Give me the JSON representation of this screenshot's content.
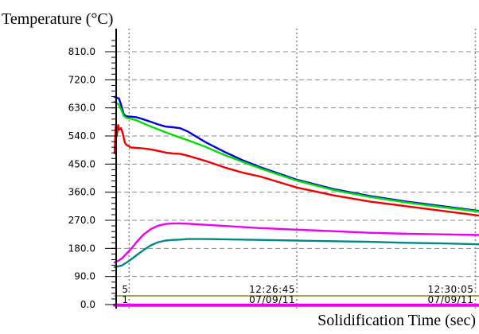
{
  "chart_data": {
    "type": "line",
    "ylabel": "Temperature (°C)",
    "xlabel": "Solidification Time (sec)",
    "ylim": [
      0,
      855
    ],
    "yticks": [
      0,
      90,
      180,
      270,
      360,
      450,
      540,
      630,
      720,
      810
    ],
    "ytick_labels": [
      "0.0",
      "90.0",
      "180.0",
      "270.0",
      "360.0",
      "450.0",
      "540.0",
      "630.0",
      "720.0",
      "810.0"
    ],
    "grid": true,
    "xlim": [
      0,
      100
    ],
    "x_markers": [
      {
        "x": 4,
        "line1": "5",
        "line2": "1"
      },
      {
        "x": 50,
        "line1": "12:26:45",
        "line2": "07/09/11"
      },
      {
        "x": 99,
        "line1": "12:30:05",
        "line2": "07/09/11"
      }
    ],
    "series": [
      {
        "color": "#0000dd",
        "x": [
          0,
          1.2,
          1.8,
          2.5,
          3.2,
          4.5,
          6,
          8,
          10,
          12,
          14,
          16,
          18,
          20,
          25,
          30,
          35,
          40,
          50,
          60,
          70,
          80,
          90,
          100
        ],
        "y": [
          665,
          660,
          640,
          610,
          603,
          602,
          600,
          593,
          585,
          577,
          570,
          568,
          565,
          555,
          520,
          490,
          463,
          440,
          400,
          370,
          348,
          330,
          315,
          300
        ]
      },
      {
        "color": "#00dd00",
        "x": [
          0,
          1.2,
          1.8,
          2.5,
          3.2,
          4.5,
          6,
          8,
          10,
          12,
          14,
          16,
          18,
          20,
          25,
          30,
          35,
          40,
          50,
          60,
          70,
          80,
          90,
          100
        ],
        "y": [
          650,
          640,
          625,
          605,
          598,
          595,
          590,
          580,
          570,
          561,
          552,
          543,
          535,
          527,
          505,
          480,
          458,
          436,
          397,
          367,
          345,
          327,
          312,
          298
        ]
      },
      {
        "color": "#ee0000",
        "x": [
          0,
          0.3,
          0.6,
          1.0,
          1.3,
          1.8,
          2.2,
          2.8,
          3.2,
          4.5,
          6,
          8,
          10,
          12,
          14,
          16,
          18,
          20,
          25,
          30,
          35,
          40,
          50,
          60,
          70,
          80,
          90,
          100
        ],
        "y": [
          485,
          570,
          540,
          575,
          560,
          565,
          550,
          520,
          512,
          503,
          502,
          500,
          497,
          492,
          487,
          484,
          483,
          477,
          460,
          440,
          423,
          410,
          375,
          350,
          330,
          315,
          300,
          285
        ]
      },
      {
        "color": "#ee00ee",
        "x": [
          0,
          1,
          2,
          3,
          4,
          5,
          6,
          8,
          10,
          12,
          14,
          16,
          18,
          20,
          30,
          40,
          50,
          60,
          70,
          80,
          90,
          100
        ],
        "y": [
          135,
          140,
          148,
          160,
          172,
          185,
          200,
          225,
          242,
          253,
          258,
          260,
          260,
          259,
          252,
          245,
          240,
          235,
          230,
          227,
          225,
          223
        ]
      },
      {
        "color": "#008888",
        "x": [
          0,
          2,
          4,
          6,
          8,
          10,
          12,
          14,
          16,
          18,
          20,
          25,
          30,
          40,
          50,
          60,
          70,
          80,
          90,
          100
        ],
        "y": [
          120,
          125,
          140,
          158,
          175,
          190,
          200,
          205,
          207,
          208,
          210,
          210,
          209,
          207,
          205,
          203,
          201,
          198,
          196,
          193
        ]
      },
      {
        "color": "#888800",
        "x": [
          0,
          100
        ],
        "y": [
          28,
          28
        ]
      },
      {
        "color": "#ee00ee",
        "x": [
          0,
          100
        ],
        "y": [
          -2,
          -2
        ]
      }
    ]
  }
}
